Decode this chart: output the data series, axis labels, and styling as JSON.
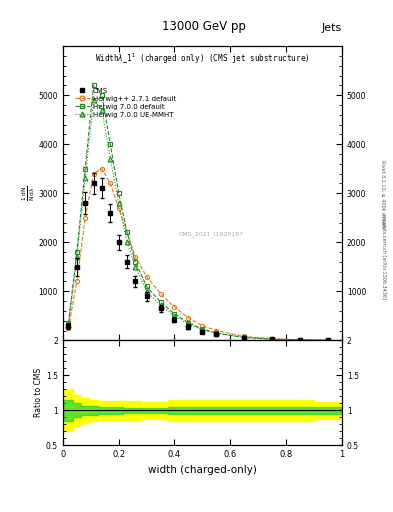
{
  "title": "13000 GeV pp",
  "title_right": "Jets",
  "plot_title": "Widthλ_1¹ (charged only) (CMS jet substructure)",
  "xlabel": "width (charged-only)",
  "ylabel_ratio": "Ratio to CMS",
  "watermark": "CMS_2021_I1920187",
  "right_label_main": "Rivet 3.1.10, ≥ 400k events",
  "right_label_sub": "mcplots.cern.ch [arXiv:1306.3436]",
  "x_data": [
    0.02,
    0.05,
    0.08,
    0.11,
    0.14,
    0.17,
    0.2,
    0.23,
    0.26,
    0.3,
    0.35,
    0.4,
    0.45,
    0.5,
    0.55,
    0.65,
    0.75,
    0.85,
    0.95
  ],
  "cms_y": [
    300,
    1500,
    2800,
    3200,
    3100,
    2600,
    2000,
    1600,
    1200,
    900,
    650,
    420,
    280,
    180,
    120,
    50,
    20,
    8,
    3
  ],
  "cms_yerr": [
    60,
    180,
    230,
    220,
    200,
    180,
    150,
    130,
    110,
    90,
    70,
    55,
    45,
    35,
    28,
    18,
    12,
    6,
    3
  ],
  "herwig271_y": [
    250,
    1200,
    2500,
    3400,
    3500,
    3200,
    2700,
    2200,
    1700,
    1300,
    950,
    680,
    460,
    300,
    200,
    80,
    35,
    14,
    5
  ],
  "herwig700_y": [
    350,
    1800,
    3500,
    5200,
    5000,
    4000,
    3000,
    2200,
    1600,
    1100,
    780,
    540,
    360,
    230,
    150,
    60,
    25,
    10,
    3
  ],
  "herwig700ue_y": [
    320,
    1700,
    3300,
    4900,
    4700,
    3700,
    2800,
    2000,
    1500,
    1000,
    720,
    500,
    330,
    210,
    140,
    55,
    22,
    9,
    3
  ],
  "ratio_yellow_upper": [
    1.3,
    1.22,
    1.18,
    1.15,
    1.14,
    1.14,
    1.14,
    1.13,
    1.13,
    1.12,
    1.12,
    1.15,
    1.15,
    1.15,
    1.15,
    1.15,
    1.15,
    1.15,
    1.12
  ],
  "ratio_yellow_lower": [
    0.7,
    0.78,
    0.82,
    0.85,
    0.86,
    0.86,
    0.86,
    0.87,
    0.87,
    0.88,
    0.88,
    0.85,
    0.85,
    0.85,
    0.85,
    0.85,
    0.85,
    0.85,
    0.88
  ],
  "ratio_green_upper": [
    1.15,
    1.1,
    1.07,
    1.06,
    1.05,
    1.05,
    1.05,
    1.04,
    1.04,
    1.03,
    1.03,
    1.05,
    1.05,
    1.05,
    1.05,
    1.05,
    1.05,
    1.05,
    1.05
  ],
  "ratio_green_lower": [
    0.85,
    0.9,
    0.93,
    0.94,
    0.95,
    0.95,
    0.95,
    0.96,
    0.96,
    0.97,
    0.97,
    0.95,
    0.95,
    0.95,
    0.95,
    0.95,
    0.95,
    0.95,
    0.95
  ],
  "color_cms": "#000000",
  "color_herwig271": "#e87820",
  "color_herwig700": "#228b22",
  "color_herwig700ue": "#90ee90",
  "color_yellow": "#ffff00",
  "color_green_band": "#90ee90",
  "xlim": [
    0,
    1
  ],
  "ylim_main": [
    0,
    6000
  ],
  "ylim_ratio": [
    0.5,
    2.0
  ]
}
